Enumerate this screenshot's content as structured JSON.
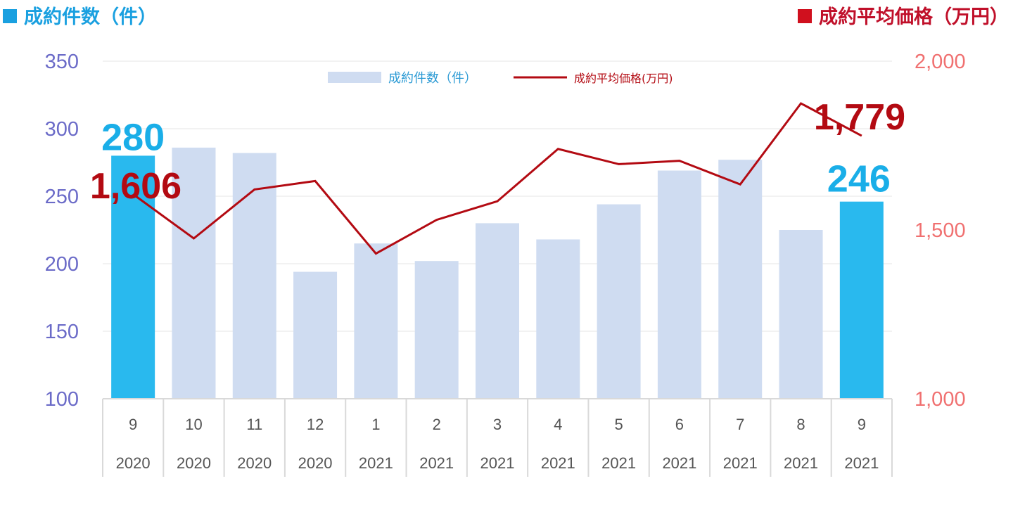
{
  "header": {
    "left_label": "成約件数（件）",
    "right_label": "成約平均価格（万円）"
  },
  "colors": {
    "bar_default": "#cfdcf1",
    "bar_highlight": "#29b9ee",
    "line": "#b30a12",
    "left_axis": "#6b6bc8",
    "right_axis": "#f07070",
    "grid": "#e6e6e6"
  },
  "chart_data": {
    "type": "bar",
    "categories": [
      "9",
      "10",
      "11",
      "12",
      "1",
      "2",
      "3",
      "4",
      "5",
      "6",
      "7",
      "8",
      "9"
    ],
    "years": [
      "2020",
      "2020",
      "2020",
      "2020",
      "2021",
      "2021",
      "2021",
      "2021",
      "2021",
      "2021",
      "2021",
      "2021",
      "2021"
    ],
    "series": [
      {
        "name": "成約件数（件）",
        "type": "bar",
        "axis": "left",
        "values": [
          280,
          286,
          282,
          194,
          215,
          202,
          230,
          218,
          244,
          269,
          277,
          225,
          246
        ],
        "highlight": [
          0,
          12
        ]
      },
      {
        "name": "成約平均価格(万円)",
        "type": "line",
        "axis": "right",
        "values": [
          1606,
          1475,
          1620,
          1645,
          1430,
          1530,
          1585,
          1740,
          1695,
          1705,
          1635,
          1875,
          1779
        ]
      }
    ],
    "ylim_left": [
      100,
      350
    ],
    "yticks_left": [
      "100",
      "150",
      "200",
      "250",
      "300",
      "350"
    ],
    "ylim_right": [
      1000,
      2000
    ],
    "yticks_right": [
      "1,000",
      "1,500",
      "2,000"
    ],
    "grid": true,
    "legend": "top-center",
    "annotations": {
      "bar_first": "280",
      "bar_last": "246",
      "line_first": "1,606",
      "line_last": "1,779"
    }
  }
}
